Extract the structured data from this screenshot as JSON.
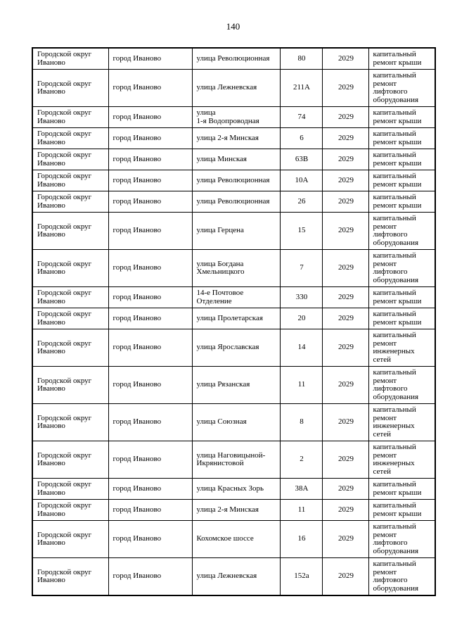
{
  "page_number": "140",
  "table": {
    "rows": [
      {
        "district": "Городской округ\nИваново",
        "city": "город Иваново",
        "street": "улица Революционная",
        "house": "80",
        "year": "2029",
        "work": "капитальный\nремонт крыши"
      },
      {
        "district": "Городской округ\nИваново",
        "city": "город Иваново",
        "street": "улица Лежневская",
        "house": "211А",
        "year": "2029",
        "work": "капитальный\nремонт\nлифтового\nоборудования"
      },
      {
        "district": "Городской округ\nИваново",
        "city": "город Иваново",
        "street": "улица\n1-я Водопроводная",
        "house": "74",
        "year": "2029",
        "work": "капитальный\nремонт крыши"
      },
      {
        "district": "Городской округ\nИваново",
        "city": "город Иваново",
        "street": "улица 2-я Минская",
        "house": "6",
        "year": "2029",
        "work": "капитальный\nремонт крыши"
      },
      {
        "district": "Городской округ\nИваново",
        "city": "город Иваново",
        "street": "улица Минская",
        "house": "63В",
        "year": "2029",
        "work": "капитальный\nремонт крыши"
      },
      {
        "district": "Городской округ\nИваново",
        "city": "город Иваново",
        "street": "улица Революционная",
        "house": "10А",
        "year": "2029",
        "work": "капитальный\nремонт крыши"
      },
      {
        "district": "Городской округ\nИваново",
        "city": "город Иваново",
        "street": "улица Революционная",
        "house": "26",
        "year": "2029",
        "work": "капитальный\nремонт крыши"
      },
      {
        "district": "Городской округ\nИваново",
        "city": "город Иваново",
        "street": "улица Герцена",
        "house": "15",
        "year": "2029",
        "work": "капитальный\nремонт\nлифтового\nоборудования"
      },
      {
        "district": "Городской округ\nИваново",
        "city": "город Иваново",
        "street": "улица Богдана\nХмельницкого",
        "house": "7",
        "year": "2029",
        "work": "капитальный\nремонт\nлифтового\nоборудования"
      },
      {
        "district": "Городской округ\nИваново",
        "city": "город Иваново",
        "street": "14-е Почтовое\nОтделение",
        "house": "330",
        "year": "2029",
        "work": "капитальный\nремонт крыши"
      },
      {
        "district": "Городской округ\nИваново",
        "city": "город Иваново",
        "street": "улица Пролетарская",
        "house": "20",
        "year": "2029",
        "work": "капитальный\nремонт крыши"
      },
      {
        "district": "Городской округ\nИваново",
        "city": "город Иваново",
        "street": "улица Ярославская",
        "house": "14",
        "year": "2029",
        "work": "капитальный\nремонт\nинженерных\nсетей"
      },
      {
        "district": "Городской округ\nИваново",
        "city": "город Иваново",
        "street": "улица Рязанская",
        "house": "11",
        "year": "2029",
        "work": "капитальный\nремонт\nлифтового\nоборудования"
      },
      {
        "district": "Городской округ\nИваново",
        "city": "город Иваново",
        "street": "улица Союзная",
        "house": "8",
        "year": "2029",
        "work": "капитальный\nремонт\nинженерных\nсетей"
      },
      {
        "district": "Городской округ\nИваново",
        "city": "город Иваново",
        "street": "улица Наговицыной-\nИкрянистовой",
        "house": "2",
        "year": "2029",
        "work": "капитальный\nремонт\nинженерных\nсетей"
      },
      {
        "district": "Городской округ\nИваново",
        "city": "город Иваново",
        "street": "улица Красных Зорь",
        "house": "38А",
        "year": "2029",
        "work": "капитальный\nремонт крыши"
      },
      {
        "district": "Городской округ\nИваново",
        "city": "город Иваново",
        "street": "улица 2-я Минская",
        "house": "11",
        "year": "2029",
        "work": "капитальный\nремонт крыши"
      },
      {
        "district": "Городской округ\nИваново",
        "city": "город Иваново",
        "street": "Кохомское шоссе",
        "house": "16",
        "year": "2029",
        "work": "капитальный\nремонт\nлифтового\nоборудования"
      },
      {
        "district": "Городской округ\nИваново",
        "city": "город Иваново",
        "street": "улица Лежневская",
        "house": "152а",
        "year": "2029",
        "work": "капитальный\nремонт\nлифтового\nоборудования"
      }
    ]
  }
}
